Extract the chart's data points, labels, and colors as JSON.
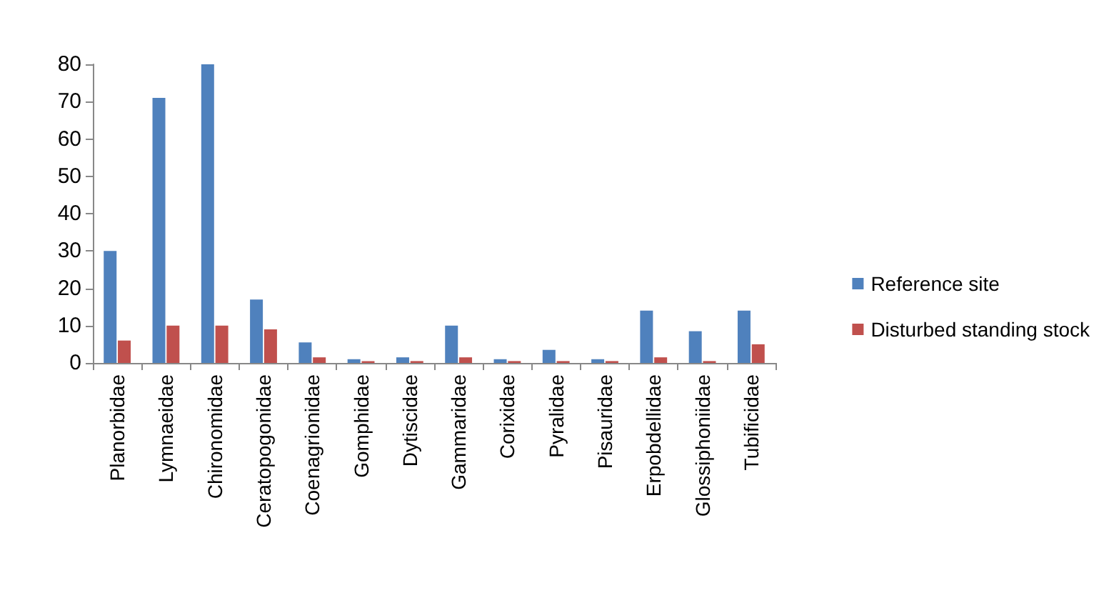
{
  "chart_data": {
    "type": "bar",
    "categories": [
      "Planorbidae",
      "Lymnaeidae",
      "Chironomidae",
      "Ceratopogonidae",
      "Coenagrionidae",
      "Gomphidae",
      "Dytiscidae",
      "Gammaridae",
      "Corixidae",
      "Pyralidae",
      "Pisauridae",
      "Erpobdellidae",
      "Glossiphoniidae",
      "Tubificidae"
    ],
    "series": [
      {
        "name": "Reference site",
        "color": "#4f81bd",
        "values": [
          30,
          71,
          80,
          17,
          5.5,
          1,
          1.5,
          10,
          1,
          3.5,
          1,
          14,
          8.5,
          14
        ]
      },
      {
        "name": "Disturbed standing stock",
        "color": "#c0504d",
        "values": [
          6,
          10,
          10,
          9,
          1.5,
          0.5,
          0.5,
          1.5,
          0.5,
          0.5,
          0.5,
          1.5,
          0.5,
          5
        ]
      }
    ],
    "ylim": [
      0,
      80
    ],
    "yticks": [
      0,
      10,
      20,
      30,
      40,
      50,
      60,
      70,
      80
    ],
    "grid": false,
    "legend": "right"
  }
}
